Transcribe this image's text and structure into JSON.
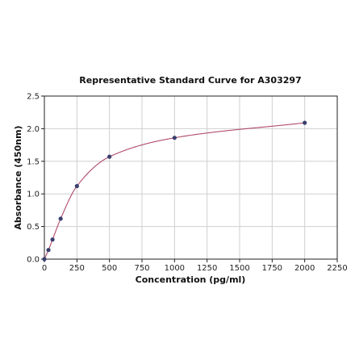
{
  "chart_data": {
    "type": "scatter",
    "title": "Representative Standard Curve for A303297",
    "xlabel": "Concentration (pg/ml)",
    "ylabel": "Absorbance (450nm)",
    "xlim": [
      0,
      2250
    ],
    "ylim": [
      0,
      2.5
    ],
    "xticks": [
      0,
      250,
      500,
      750,
      1000,
      1250,
      1500,
      1750,
      2000,
      2250
    ],
    "yticks": [
      0.0,
      0.5,
      1.0,
      1.5,
      2.0,
      2.5
    ],
    "xtick_labels": [
      "0",
      "250",
      "500",
      "750",
      "1000",
      "1250",
      "1500",
      "1750",
      "2000",
      "2250"
    ],
    "ytick_labels": [
      "0.0",
      "0.5",
      "1.0",
      "1.5",
      "2.0",
      "2.5"
    ],
    "grid": true,
    "series": [
      {
        "points": [
          {
            "x": 0,
            "y": 0.0
          },
          {
            "x": 31.25,
            "y": 0.14
          },
          {
            "x": 62.5,
            "y": 0.3
          },
          {
            "x": 125,
            "y": 0.62
          },
          {
            "x": 250,
            "y": 1.12
          },
          {
            "x": 500,
            "y": 1.57
          },
          {
            "x": 1000,
            "y": 1.86
          },
          {
            "x": 2000,
            "y": 2.09
          }
        ],
        "marker_color": "#3a3f6e",
        "fit_color": "#b04a68"
      }
    ]
  }
}
